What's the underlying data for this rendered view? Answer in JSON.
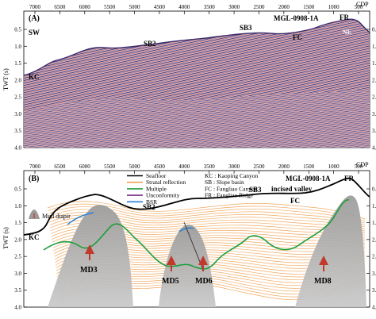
{
  "figure": {
    "panel_a": {
      "panel_label": "(A)",
      "line_name": "MGL-0908-1A",
      "axis_unit_top": "CDP",
      "axis_label_left": "TWT (s)",
      "cdp_ticks": [
        "7000",
        "6500",
        "6000",
        "5500",
        "5000",
        "4500",
        "4000",
        "3500",
        "3000",
        "2500",
        "2000",
        "1500",
        "1000",
        "500"
      ],
      "twt_ticks": [
        "0.5",
        "1.0",
        "1.5",
        "2.0",
        "2.5",
        "3.0",
        "3.5",
        "4.0"
      ],
      "annotations": {
        "sw": "SW",
        "kc": "KC",
        "sb2": "SB2",
        "sb3": "SB3",
        "fc": "FC",
        "fr": "FR",
        "ne": "NE"
      }
    },
    "panel_b": {
      "panel_label": "(B)",
      "line_name": "MGL-0908-1A",
      "axis_unit_top": "CDP",
      "axis_label_left": "TWT (s)",
      "cdp_ticks": [
        "7000",
        "6500",
        "6000",
        "5500",
        "5000",
        "4500",
        "4000",
        "3500",
        "3000",
        "2500",
        "2000",
        "1500",
        "1000",
        "500"
      ],
      "twt_ticks": [
        "0.5",
        "1.0",
        "1.5",
        "2.0",
        "2.5",
        "3.0",
        "3.5",
        "4.0"
      ],
      "legend_lines": [
        {
          "label": "Seafloor",
          "color": "#000000"
        },
        {
          "label": "Stratal reflection",
          "color": "#f0a050"
        },
        {
          "label": "Multiple",
          "color": "#1f9e3a"
        },
        {
          "label": "Unconformity",
          "color": "#7a2f8a"
        },
        {
          "label": "BSR",
          "color": "#2a7fd4"
        }
      ],
      "legend_abbrev": [
        "KC : Kaoping Canyon",
        "SB : Slope basin",
        "FC : Fangliao Canyon",
        "FR : Fangliao Ridge"
      ],
      "mud_diapir_label": "Mud diapir",
      "annotations": {
        "kc": "KC",
        "sb2": "SB2",
        "sb3": "SB3",
        "incised_valley": "incised valley",
        "fc": "FC",
        "fr": "FR"
      },
      "diapirs": [
        "MD3",
        "MD5",
        "MD6",
        "MD8"
      ]
    }
  }
}
